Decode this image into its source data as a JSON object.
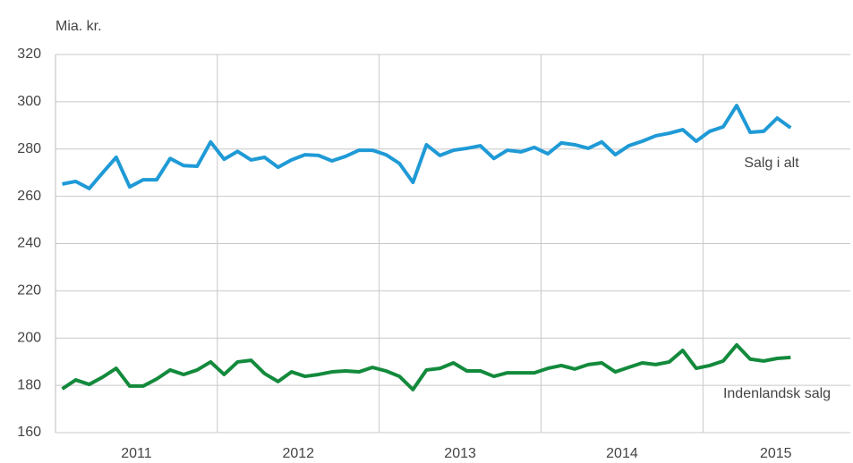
{
  "chart_data": {
    "type": "line",
    "y_label": "Mia. kr.",
    "x_labels": [
      "2011",
      "2012",
      "2013",
      "2014",
      "2015"
    ],
    "series": [
      {
        "name": "Salg i alt",
        "color": "#1f9ad6",
        "values": [
          265.2,
          266.3,
          263.3,
          270,
          276.5,
          264,
          267,
          267,
          276,
          273,
          272.7,
          283,
          275.7,
          279,
          275.4,
          276.5,
          272.3,
          275.4,
          277.6,
          277.3,
          275,
          276.9,
          279.5,
          279.5,
          277.6,
          273.9,
          265.9,
          281.8,
          277.3,
          279.5,
          280.3,
          281.4,
          276,
          279.5,
          278.8,
          280.7,
          278,
          282.6,
          281.8,
          280.3,
          283,
          277.6,
          281.4,
          283.3,
          285.6,
          286.7,
          288.2,
          283.3,
          287.5,
          289.4,
          298.4,
          287.1,
          287.5,
          293.1,
          289
        ]
      },
      {
        "name": "Indenlandsk salg",
        "color": "#138a3c",
        "values": [
          178.5,
          182.3,
          180.4,
          183.5,
          187.2,
          179.7,
          179.7,
          182.7,
          186.5,
          184.6,
          186.5,
          189.9,
          184.6,
          189.9,
          190.6,
          185,
          181.6,
          185.7,
          183.8,
          184.6,
          185.7,
          186.1,
          185.7,
          187.6,
          186.1,
          183.8,
          178.2,
          186.5,
          187.2,
          189.5,
          186.1,
          186.1,
          183.8,
          185.3,
          185.3,
          185.3,
          187.2,
          188.4,
          186.9,
          188.8,
          189.5,
          185.7,
          187.6,
          189.5,
          188.8,
          189.9,
          194.8,
          187.2,
          188.4,
          190.3,
          197.1,
          191.1,
          190.3,
          191.4,
          191.8
        ]
      }
    ],
    "ylim": [
      160,
      320
    ],
    "yticks": [
      160,
      180,
      200,
      220,
      240,
      260,
      280,
      300,
      320
    ],
    "grid": true
  }
}
